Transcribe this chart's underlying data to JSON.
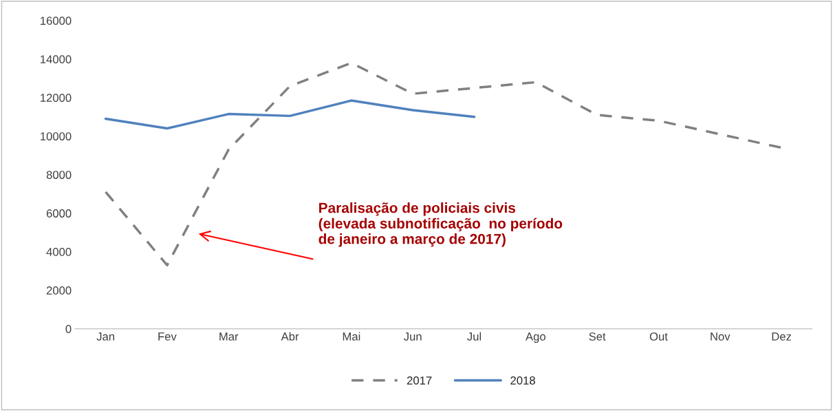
{
  "chart_data": {
    "type": "line",
    "categories": [
      "Jan",
      "Fev",
      "Mar",
      "Abr",
      "Mai",
      "Jun",
      "Jul",
      "Ago",
      "Set",
      "Out",
      "Nov",
      "Dez"
    ],
    "series": [
      {
        "name": "2017",
        "color": "#808080",
        "line_style": "dashed",
        "values": [
          7100,
          3300,
          9300,
          12600,
          13800,
          12200,
          12500,
          12800,
          11100,
          10800,
          10100,
          9400
        ]
      },
      {
        "name": "2018",
        "color": "#4f81bd",
        "line_style": "solid",
        "values": [
          10900,
          10400,
          11150,
          11050,
          11850,
          11350,
          11000,
          null,
          null,
          null,
          null,
          null
        ]
      }
    ],
    "ylim": [
      0,
      16000
    ],
    "yticks": [
      0,
      2000,
      4000,
      6000,
      8000,
      10000,
      12000,
      14000,
      16000
    ],
    "grid": false,
    "legend": "bottom",
    "marker": "none",
    "annotations": [
      "Paralisação de policiais civis\n(elevada subnotificação  no período\nde janeiro a março de 2017)"
    ]
  }
}
